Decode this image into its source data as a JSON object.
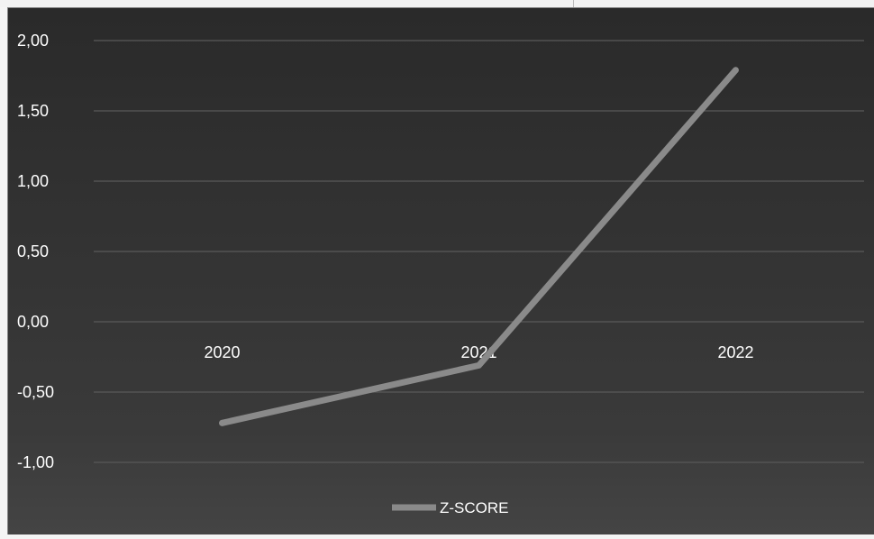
{
  "chart_data": {
    "type": "line",
    "categories": [
      "2020",
      "2021",
      "2022"
    ],
    "series": [
      {
        "name": "Z-SCORE",
        "values": [
          -0.72,
          -0.31,
          1.79
        ]
      }
    ],
    "ylim": [
      -1.0,
      2.0
    ],
    "yticks": [
      "2,00",
      "1,50",
      "1,00",
      "0,50",
      "0,00",
      "-0,50",
      "-1,00"
    ],
    "ytick_values": [
      2.0,
      1.5,
      1.0,
      0.5,
      0.0,
      -0.5,
      -1.0
    ],
    "grid": true,
    "legend": "bottom",
    "title": "",
    "xlabel": "",
    "ylabel": "",
    "colors": {
      "background": "#333333",
      "line": "#8a8a8a",
      "grid": "#5a5a5a",
      "text": "#ffffff"
    }
  }
}
